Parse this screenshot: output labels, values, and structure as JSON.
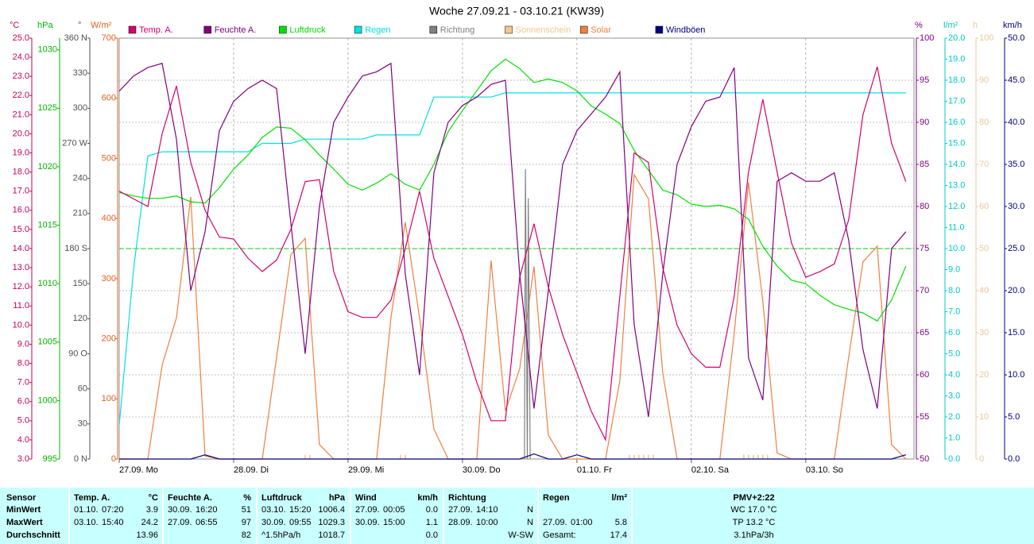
{
  "chart_data": {
    "type": "line",
    "title": "Woche 27.09.21 - 03.10.21 (KW39)",
    "xlim": [
      0,
      166.7
    ],
    "xticks": [
      {
        "value": 0,
        "label": "27.09. Mo"
      },
      {
        "value": 24,
        "label": "28.09. Di"
      },
      {
        "value": 48,
        "label": "29.09. Mi"
      },
      {
        "value": 72,
        "label": "30.09. Do"
      },
      {
        "value": 96,
        "label": "01.10. Fr"
      },
      {
        "value": 120,
        "label": "02.10. Sa"
      },
      {
        "value": 144,
        "label": "03.10. So"
      }
    ],
    "xgrid": true,
    "axes": [
      {
        "label": "°C",
        "color": "#c8005a",
        "lim": [
          3,
          25
        ],
        "ticks": [
          {
            "value": 3,
            "label": "3.0"
          },
          {
            "value": 4,
            "label": "4.0"
          },
          {
            "value": 5,
            "label": "5.0"
          },
          {
            "value": 6,
            "label": "6.0"
          },
          {
            "value": 7,
            "label": "7.0"
          },
          {
            "value": 8,
            "label": "8.0"
          },
          {
            "value": 9,
            "label": "9.0"
          },
          {
            "value": 10,
            "label": "10.0"
          },
          {
            "value": 11,
            "label": "11.0"
          },
          {
            "value": 12,
            "label": "12.0"
          },
          {
            "value": 13,
            "label": "13.0"
          },
          {
            "value": 14,
            "label": "14.0"
          },
          {
            "value": 15,
            "label": "15.0"
          },
          {
            "value": 16,
            "label": "16.0"
          },
          {
            "value": 17,
            "label": "17.0"
          },
          {
            "value": 18,
            "label": "18.0"
          },
          {
            "value": 19,
            "label": "19.0"
          },
          {
            "value": 20,
            "label": "20.0"
          },
          {
            "value": 21,
            "label": "21.0"
          },
          {
            "value": 22,
            "label": "22.0"
          },
          {
            "value": 23,
            "label": "23.0"
          },
          {
            "value": 24,
            "label": "24.0"
          },
          {
            "value": 25,
            "label": "25.0"
          }
        ]
      },
      {
        "label": "hPa",
        "color": "#00b400",
        "lim": [
          995,
          1031
        ],
        "ticks": [
          995,
          1000,
          1005,
          1010,
          1015,
          1020,
          1025,
          1030
        ]
      },
      {
        "label": "°",
        "color": "#505050",
        "lim": [
          0,
          360
        ],
        "ticks": [
          {
            "value": 0,
            "label": "0 N"
          },
          30,
          60,
          {
            "value": 90,
            "label": "90 O"
          },
          120,
          150,
          {
            "value": 180,
            "label": "180 S"
          },
          210,
          240,
          {
            "value": 270,
            "label": "270 W"
          },
          300,
          330,
          {
            "value": 360,
            "label": "360 N"
          }
        ]
      },
      {
        "label": "W/m²",
        "color": "#e06020",
        "lim": [
          0,
          700
        ],
        "ticks": [
          0,
          100,
          200,
          300,
          400,
          500,
          600,
          700
        ]
      },
      {
        "label": "%",
        "color": "#800080",
        "lim": [
          50,
          100
        ],
        "ticks": [
          50,
          55,
          60,
          65,
          70,
          75,
          80,
          85,
          90,
          95,
          100
        ],
        "grid": true
      },
      {
        "label": "l/m²",
        "color": "#00c8c8",
        "lim": [
          0,
          20
        ],
        "ticks": [
          {
            "value": 0,
            "label": "0.0"
          },
          {
            "value": 1,
            "label": "1.0"
          },
          {
            "value": 2,
            "label": "2.0"
          },
          {
            "value": 3,
            "label": "3.0"
          },
          {
            "value": 4,
            "label": "4.0"
          },
          {
            "value": 5,
            "label": "5.0"
          },
          {
            "value": 6,
            "label": "6.0"
          },
          {
            "value": 7,
            "label": "7.0"
          },
          {
            "value": 8,
            "label": "8.0"
          },
          {
            "value": 9,
            "label": "9.0"
          },
          {
            "value": 10,
            "label": "10.0"
          },
          {
            "value": 11,
            "label": "11.0"
          },
          {
            "value": 12,
            "label": "12.0"
          },
          {
            "value": 13,
            "label": "13.0"
          },
          {
            "value": 14,
            "label": "14.0"
          },
          {
            "value": 15,
            "label": "15.0"
          },
          {
            "value": 16,
            "label": "16.0"
          },
          {
            "value": 17,
            "label": "17.0"
          },
          {
            "value": 18,
            "label": "18.0"
          },
          {
            "value": 19,
            "label": "19.0"
          },
          {
            "value": 20,
            "label": "20.0"
          }
        ]
      },
      {
        "label": "h",
        "color": "#e8c898",
        "lim": [
          0,
          100
        ],
        "ticks": [
          0,
          10,
          20,
          30,
          40,
          50,
          60,
          70,
          80,
          90,
          100
        ]
      },
      {
        "label": "km/h",
        "color": "#000080",
        "lim": [
          0,
          50
        ],
        "ticks": [
          {
            "value": 0,
            "label": "0.0"
          },
          {
            "value": 5,
            "label": "5.0"
          },
          {
            "value": 10,
            "label": "10.0"
          },
          {
            "value": 15,
            "label": "15.0"
          },
          {
            "value": 20,
            "label": "20.0"
          },
          {
            "value": 25,
            "label": "25.0"
          },
          {
            "value": 30,
            "label": "30.0"
          },
          {
            "value": 35,
            "label": "35.0"
          },
          {
            "value": 40,
            "label": "40.0"
          },
          {
            "value": 45,
            "label": "45.0"
          },
          {
            "value": 50,
            "label": "50.0"
          }
        ]
      }
    ],
    "reference_line": {
      "axis": 1,
      "value": 1013,
      "color": "#00d000"
    },
    "x": [
      0,
      3,
      6,
      9,
      12,
      15,
      18,
      21,
      24,
      27,
      30,
      33,
      36,
      39,
      42,
      45,
      48,
      51,
      54,
      57,
      60,
      63,
      66,
      69,
      72,
      75,
      78,
      81,
      84,
      87,
      90,
      93,
      96,
      99,
      102,
      105,
      108,
      111,
      114,
      117,
      120,
      123,
      126,
      129,
      132,
      135,
      138,
      141,
      144,
      147,
      150,
      153,
      156,
      159,
      162,
      165
    ],
    "series": [
      {
        "name": "Temp. A.",
        "color": "#d4006e",
        "axis": 0,
        "values": [
          17.0,
          16.6,
          16.2,
          20.0,
          22.5,
          18.5,
          16.0,
          14.6,
          14.5,
          13.5,
          12.8,
          13.4,
          15.0,
          17.5,
          17.6,
          12.8,
          10.7,
          10.4,
          10.4,
          11.3,
          14.0,
          17.0,
          13.5,
          11.5,
          9.5,
          7.0,
          5.0,
          5.0,
          12.5,
          15.3,
          12.0,
          9.5,
          7.5,
          5.5,
          4.0,
          11.5,
          19.0,
          18.5,
          13.0,
          10.0,
          8.5,
          7.8,
          7.8,
          11.5,
          18.0,
          21.8,
          18.0,
          14.3,
          12.5,
          12.8,
          13.2,
          15.5,
          21.0,
          23.5,
          19.5,
          17.5
        ]
      },
      {
        "name": "Feuchte A.",
        "color": "#800080",
        "axis": 4,
        "values": [
          93.7,
          95.5,
          96.5,
          97.0,
          88.0,
          70.0,
          77.0,
          89.0,
          92.5,
          94.0,
          95.0,
          94.0,
          78.0,
          62.5,
          80.0,
          90.0,
          93.0,
          95.5,
          96.0,
          97.0,
          72.0,
          60.0,
          84.0,
          90.0,
          92.0,
          93.0,
          94.5,
          95.0,
          72.0,
          56.0,
          70.0,
          85.0,
          89.0,
          91.0,
          93.0,
          96.0,
          66.0,
          55.0,
          72.0,
          85.0,
          89.5,
          92.5,
          93.0,
          96.5,
          62.0,
          57.0,
          83.0,
          84.0,
          83.0,
          83.0,
          84.0,
          76.0,
          63.0,
          56.0,
          75.0,
          77.0
        ]
      },
      {
        "name": "Luftdruck",
        "color": "#00e000",
        "axis": 1,
        "values": [
          1017.8,
          1017.5,
          1017.3,
          1017.3,
          1017.5,
          1017.0,
          1016.9,
          1018.2,
          1019.8,
          1021.0,
          1022.5,
          1023.4,
          1023.3,
          1022.3,
          1021.0,
          1019.8,
          1018.5,
          1018.0,
          1018.6,
          1019.4,
          1018.5,
          1018.0,
          1020.2,
          1023.0,
          1024.8,
          1026.5,
          1028.2,
          1029.2,
          1028.4,
          1027.2,
          1027.5,
          1027.2,
          1026.5,
          1025.2,
          1024.5,
          1023.7,
          1021.4,
          1019.7,
          1018.0,
          1017.6,
          1016.8,
          1016.6,
          1016.7,
          1016.4,
          1015.5,
          1013.2,
          1011.5,
          1010.3,
          1010.0,
          1009.0,
          1008.2,
          1007.8,
          1007.5,
          1006.8,
          1008.6,
          1011.5
        ]
      },
      {
        "name": "Regen",
        "color": "#00e0e0",
        "axis": 5,
        "values": [
          1.6,
          9.0,
          14.4,
          14.6,
          14.6,
          14.6,
          14.6,
          14.6,
          14.6,
          14.6,
          15.0,
          15.0,
          15.0,
          15.2,
          15.2,
          15.2,
          15.2,
          15.2,
          15.4,
          15.4,
          15.4,
          15.4,
          17.2,
          17.2,
          17.2,
          17.2,
          17.2,
          17.4,
          17.4,
          17.4,
          17.4,
          17.4,
          17.4,
          17.4,
          17.4,
          17.4,
          17.4,
          17.4,
          17.4,
          17.4,
          17.4,
          17.4,
          17.4,
          17.4,
          17.4,
          17.4,
          17.4,
          17.4,
          17.4,
          17.4,
          17.4,
          17.4,
          17.4,
          17.4,
          17.4,
          17.4
        ]
      },
      {
        "name": "Richtung",
        "color": "#808080",
        "axis": 2,
        "x": [
          85,
          85.2,
          85.6,
          85.8,
          86.2
        ],
        "values": [
          0,
          248,
          0,
          223,
          0
        ]
      },
      {
        "name": "Sonnenschein",
        "color": "#f0c890",
        "axis": 6,
        "bars": true,
        "x": [
          39,
          40,
          59,
          60,
          107,
          108,
          109,
          110,
          111,
          112,
          131,
          132,
          133,
          134,
          135,
          136
        ],
        "values": [
          1,
          1,
          1,
          1,
          1,
          1,
          1,
          1,
          1,
          1,
          1,
          1,
          1,
          1,
          1,
          1
        ]
      },
      {
        "name": "Solar",
        "color": "#f08040",
        "axis": 3,
        "values": [
          0,
          0,
          0,
          156,
          235,
          436,
          5,
          0,
          0,
          0,
          0,
          169,
          340,
          367,
          24,
          0,
          0,
          0,
          0,
          235,
          394,
          235,
          50,
          0,
          0,
          0,
          330,
          80,
          150,
          320,
          40,
          0,
          0,
          0,
          0,
          130,
          473,
          433,
          143,
          0,
          0,
          0,
          0,
          209,
          460,
          262,
          10,
          0,
          0,
          0,
          0,
          169,
          328,
          354,
          24,
          0
        ]
      },
      {
        "name": "Windböen",
        "color": "#000080",
        "axis": 7,
        "values": [
          0,
          0,
          0,
          0,
          0,
          0,
          0.5,
          0,
          0,
          0,
          0,
          0,
          0,
          0,
          0,
          0,
          0,
          0,
          0,
          0,
          0,
          0,
          0,
          0,
          0,
          0,
          0,
          0,
          0,
          0.6,
          0,
          0,
          0.5,
          0,
          0,
          0,
          0,
          0,
          0,
          0,
          0,
          0,
          0,
          0,
          0,
          0,
          0,
          0,
          0,
          0,
          0,
          0,
          0,
          0,
          0,
          0.5
        ]
      }
    ],
    "draw_order": [
      6,
      3,
      2,
      4,
      5,
      0,
      1,
      7
    ]
  },
  "table": {
    "corner": "Sensor",
    "columns": [
      [
        "Temp. A.",
        "°C"
      ],
      [
        "Feuchte A.",
        "%"
      ],
      [
        "Luftdruck",
        "hPa"
      ],
      [
        "Wind",
        "km/h"
      ],
      [
        "Richtung"
      ],
      [
        "Regen",
        "l/m²"
      ],
      [
        "PMV+2:22"
      ]
    ],
    "rows": [
      {
        "label": "MinWert",
        "cells": [
          [
            "01.10.",
            "07:20",
            "3.9"
          ],
          [
            "30.09.",
            "16:20",
            "51"
          ],
          [
            "03.10.",
            "15:20",
            "1006.4"
          ],
          [
            "27.09.",
            "00:05",
            "0.0"
          ],
          [
            "27.09.",
            "14:10",
            "N"
          ],
          [],
          [
            "WC 17.0 °C"
          ]
        ]
      },
      {
        "label": "MaxWert",
        "cells": [
          [
            "03.10.",
            "15:40",
            "24.2"
          ],
          [
            "27.09.",
            "06:55",
            "97"
          ],
          [
            "30.09.",
            "09:55",
            "1029.3"
          ],
          [
            "30.09.",
            "15:00",
            "1.1"
          ],
          [
            "28.09.",
            "10:00",
            "N"
          ],
          [
            "27.09.",
            "01:00",
            "5.8"
          ],
          [
            "TP 13.2 °C"
          ]
        ]
      },
      {
        "label": "Durchschnitt",
        "cells": [
          [
            "13.96"
          ],
          [
            "82"
          ],
          [
            "^1.5hPa/h",
            "1018.7"
          ],
          [
            "0.0"
          ],
          [
            "W-SW"
          ],
          [
            "Gesamt:",
            "17.4"
          ],
          [
            "3.1hPa/3h"
          ]
        ]
      }
    ]
  }
}
